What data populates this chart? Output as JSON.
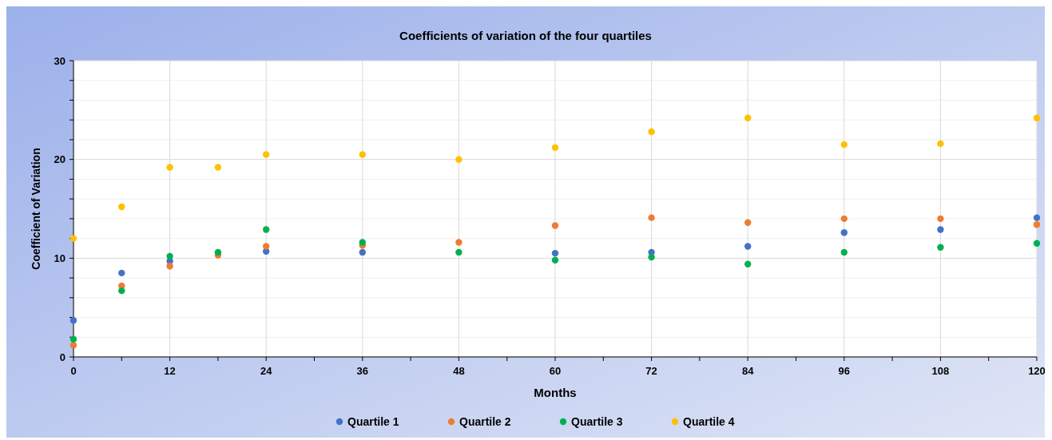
{
  "chart_data": {
    "type": "scatter",
    "title": "Coefficients of variation of the four quartiles",
    "xlabel": "Months",
    "ylabel": "Coefficient of Variation",
    "x": [
      0,
      6,
      12,
      18,
      24,
      36,
      48,
      60,
      72,
      84,
      96,
      108,
      120
    ],
    "series": [
      {
        "name": "Quartile 1",
        "color": "#4472c4",
        "values": [
          3.7,
          8.5,
          9.7,
          null,
          10.7,
          10.6,
          null,
          10.5,
          10.6,
          11.2,
          12.6,
          12.9,
          14.1
        ]
      },
      {
        "name": "Quartile 2",
        "color": "#ed7d31",
        "values": [
          1.2,
          7.2,
          9.2,
          10.3,
          11.2,
          11.3,
          11.6,
          13.3,
          14.1,
          13.6,
          14.0,
          14.0,
          13.4
        ]
      },
      {
        "name": "Quartile 3",
        "color": "#00b050",
        "values": [
          1.8,
          6.7,
          10.2,
          10.6,
          12.9,
          11.6,
          10.6,
          9.8,
          10.1,
          9.4,
          10.6,
          11.1,
          11.5
        ]
      },
      {
        "name": "Quartile 4",
        "color": "#ffc000",
        "values": [
          12.0,
          15.2,
          19.2,
          19.2,
          20.5,
          20.5,
          20.0,
          21.2,
          22.8,
          24.2,
          21.5,
          21.6,
          24.2
        ]
      }
    ],
    "xlim": [
      0,
      120
    ],
    "xticks": [
      0,
      {
        "value": 6,
        "label": null
      },
      12,
      {
        "value": 18,
        "label": null
      },
      24,
      {
        "value": 30,
        "label": null
      },
      36,
      {
        "value": 42,
        "label": null
      },
      48,
      {
        "value": 54,
        "label": null
      },
      60,
      {
        "value": 66,
        "label": null
      },
      72,
      {
        "value": 78,
        "label": null
      },
      84,
      {
        "value": 90,
        "label": null
      },
      96,
      {
        "value": 102,
        "label": null
      },
      108,
      {
        "value": 114,
        "label": null
      },
      120
    ],
    "ylim": [
      0,
      30
    ],
    "yticks": [
      0,
      {
        "value": 2,
        "label": null
      },
      {
        "value": 4,
        "label": null
      },
      {
        "value": 6,
        "label": null
      },
      {
        "value": 8,
        "label": null
      },
      10,
      {
        "value": 12,
        "label": null
      },
      {
        "value": 14,
        "label": null
      },
      {
        "value": 16,
        "label": null
      },
      {
        "value": 18,
        "label": null
      },
      20,
      {
        "value": 22,
        "label": null
      },
      {
        "value": 24,
        "label": null
      },
      {
        "value": 26,
        "label": null
      },
      {
        "value": 28,
        "label": null
      },
      30
    ],
    "grid": true,
    "legend": "bottom",
    "marker": "circle"
  }
}
